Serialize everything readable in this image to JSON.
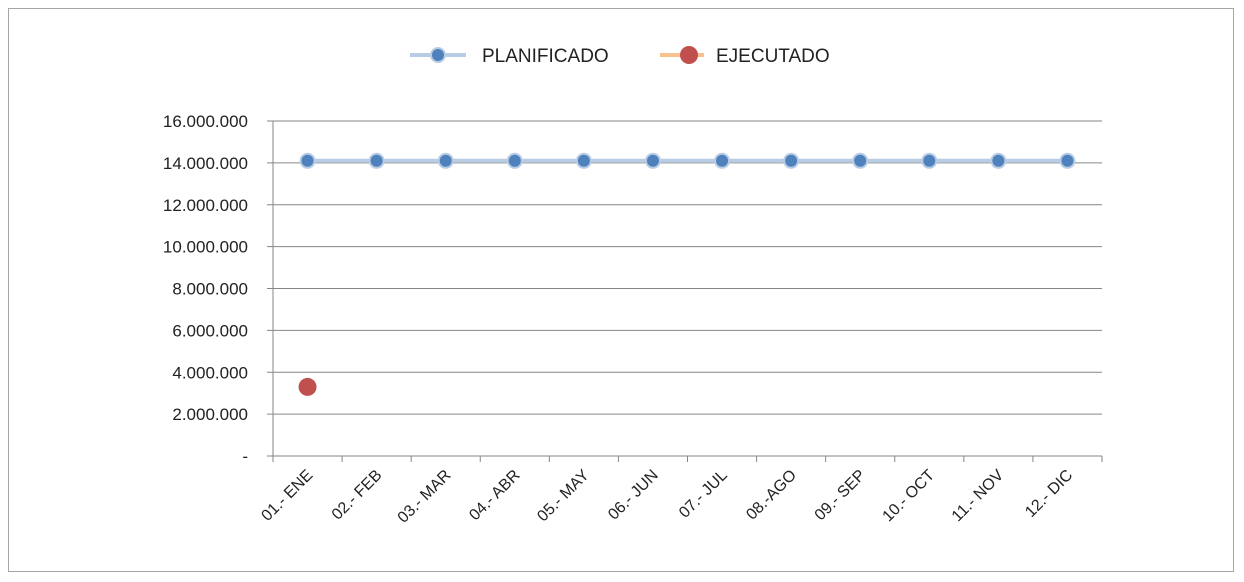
{
  "chart_data": {
    "type": "line",
    "title": "",
    "xlabel": "",
    "ylabel": "",
    "legend_position": "top",
    "grid": true,
    "categories": [
      "01.- ENE",
      "02.- FEB",
      "03.- MAR",
      "04.- ABR",
      "05.- MAY",
      "06.- JUN",
      "07.- JUL",
      "08.-AGO",
      "09.- SEP",
      "10.- OCT",
      "11.- NOV",
      "12.- DIC"
    ],
    "ylim": [
      0,
      16000000
    ],
    "y_ticks": [
      0,
      2000000,
      4000000,
      6000000,
      8000000,
      10000000,
      12000000,
      14000000,
      16000000
    ],
    "y_tick_labels": [
      "-",
      "2.000.000",
      "4.000.000",
      "6.000.000",
      "8.000.000",
      "10.000.000",
      "12.000.000",
      "14.000.000",
      "16.000.000"
    ],
    "series": [
      {
        "name": "PLANIFICADO",
        "line_color": "#b8cce4",
        "marker_color": "#4f81bd",
        "values": [
          14100000,
          14100000,
          14100000,
          14100000,
          14100000,
          14100000,
          14100000,
          14100000,
          14100000,
          14100000,
          14100000,
          14100000
        ]
      },
      {
        "name": "EJECUTADO",
        "line_color": "#fac090",
        "marker_color": "#c0504d",
        "values": [
          3300000,
          null,
          null,
          null,
          null,
          null,
          null,
          null,
          null,
          null,
          null,
          null
        ]
      }
    ]
  }
}
